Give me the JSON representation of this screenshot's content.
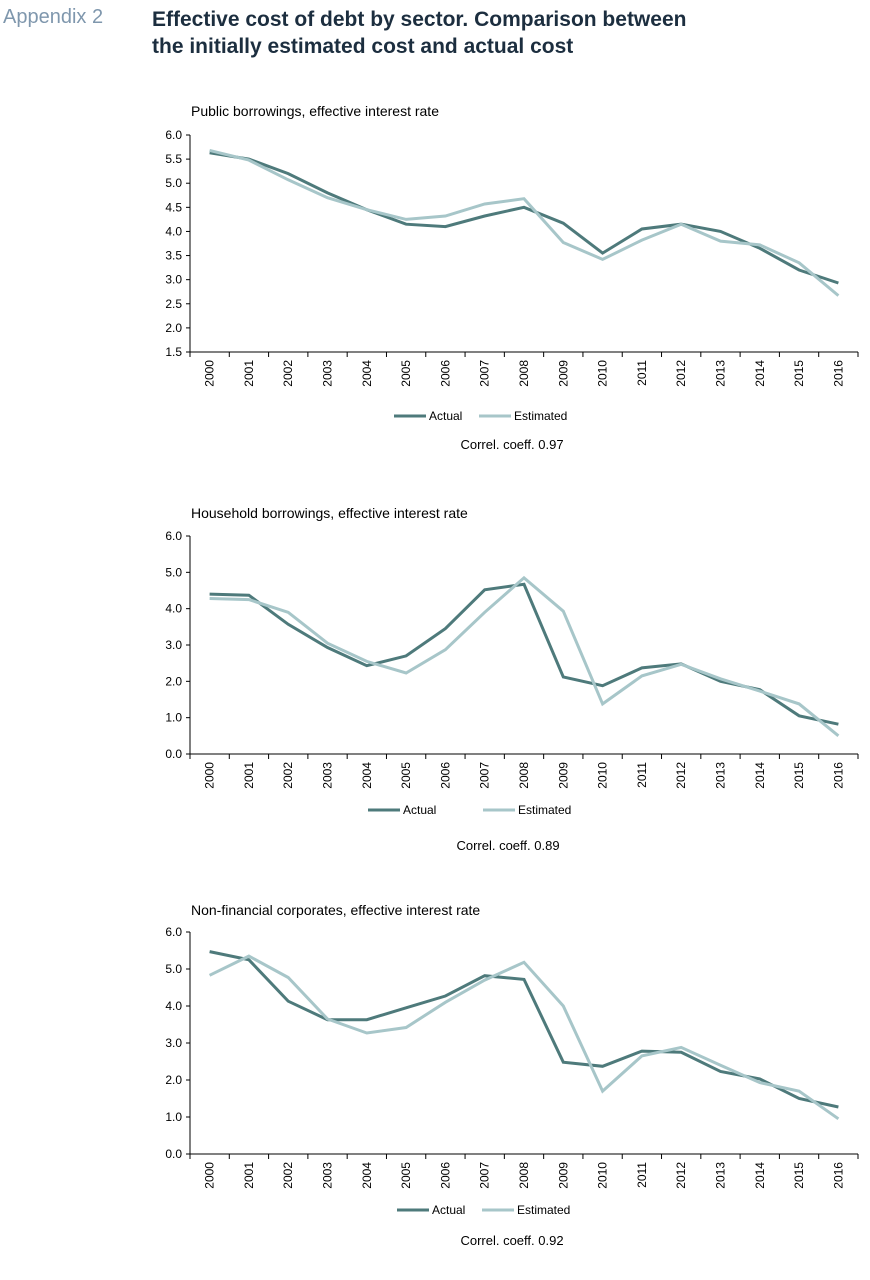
{
  "header": {
    "appendix": "Appendix 2",
    "title_line1": "Effective cost of debt by sector. Comparison between",
    "title_line2": "the initially estimated cost and actual cost"
  },
  "colors": {
    "actual": "#4e7a7b",
    "estimated": "#a7c6c9",
    "axis": "#000000"
  },
  "chart_data": [
    {
      "type": "line",
      "title": "Public borrowings, effective interest rate",
      "x": [
        "2000",
        "2001",
        "2002",
        "2003",
        "2004",
        "2005",
        "2006",
        "2007",
        "2008",
        "2009",
        "2010",
        "2011",
        "2012",
        "2013",
        "2014",
        "2015",
        "2016"
      ],
      "series": [
        {
          "name": "Actual",
          "values": [
            5.63,
            5.5,
            5.2,
            4.8,
            4.45,
            4.15,
            4.1,
            4.32,
            4.5,
            4.17,
            3.55,
            4.05,
            4.15,
            4.0,
            3.65,
            3.2,
            2.93
          ]
        },
        {
          "name": "Estimated",
          "values": [
            5.68,
            5.48,
            5.07,
            4.7,
            4.45,
            4.25,
            4.32,
            4.57,
            4.68,
            3.77,
            3.42,
            3.82,
            4.15,
            3.8,
            3.72,
            3.35,
            2.67
          ]
        }
      ],
      "ylim": [
        1.5,
        6.0
      ],
      "yticks": [
        "1.5",
        "2.0",
        "2.5",
        "3.0",
        "3.5",
        "4.0",
        "4.5",
        "5.0",
        "5.5",
        "6.0"
      ],
      "footnote": "Correl. coeff. 0.97"
    },
    {
      "type": "line",
      "title": "Household borrowings, effective interest rate",
      "x": [
        "2000",
        "2001",
        "2002",
        "2003",
        "2004",
        "2005",
        "2006",
        "2007",
        "2008",
        "2009",
        "2010",
        "2011",
        "2012",
        "2013",
        "2014",
        "2015",
        "2016"
      ],
      "series": [
        {
          "name": "Actual",
          "values": [
            4.4,
            4.37,
            3.57,
            2.93,
            2.43,
            2.7,
            3.45,
            4.52,
            4.67,
            2.12,
            1.88,
            2.37,
            2.48,
            2.0,
            1.77,
            1.05,
            0.82
          ]
        },
        {
          "name": "Estimated",
          "values": [
            4.28,
            4.25,
            3.9,
            3.05,
            2.55,
            2.23,
            2.87,
            3.9,
            4.85,
            3.93,
            1.38,
            2.15,
            2.47,
            2.07,
            1.73,
            1.38,
            0.5
          ]
        }
      ],
      "ylim": [
        0.0,
        6.0
      ],
      "yticks": [
        "0.0",
        "1.0",
        "2.0",
        "3.0",
        "4.0",
        "5.0",
        "6.0"
      ],
      "footnote": "Correl. coeff. 0.89"
    },
    {
      "type": "line",
      "title": "Non-financial corporates, effective interest rate",
      "x": [
        "2000",
        "2001",
        "2002",
        "2003",
        "2004",
        "2005",
        "2006",
        "2007",
        "2008",
        "2009",
        "2010",
        "2011",
        "2012",
        "2013",
        "2014",
        "2015",
        "2016"
      ],
      "series": [
        {
          "name": "Actual",
          "values": [
            5.47,
            5.25,
            4.13,
            3.63,
            3.63,
            3.95,
            4.27,
            4.82,
            4.72,
            2.48,
            2.37,
            2.78,
            2.75,
            2.23,
            2.03,
            1.5,
            1.27
          ]
        },
        {
          "name": "Estimated",
          "values": [
            4.83,
            5.35,
            4.77,
            3.65,
            3.27,
            3.42,
            4.1,
            4.7,
            5.18,
            4.0,
            1.7,
            2.65,
            2.88,
            2.4,
            1.93,
            1.7,
            0.95
          ]
        }
      ],
      "ylim": [
        0.0,
        6.0
      ],
      "yticks": [
        "0.0",
        "1.0",
        "2.0",
        "3.0",
        "4.0",
        "5.0",
        "6.0"
      ],
      "footnote": "Correl. coeff. 0.92"
    }
  ]
}
